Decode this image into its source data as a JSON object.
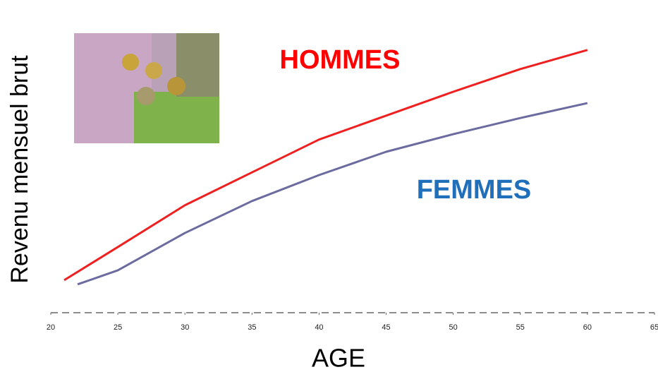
{
  "chart_data": {
    "type": "line",
    "x_label": "AGE",
    "y_label": "Revenu mensuel brut",
    "xlim": [
      20,
      65
    ],
    "xticks": [
      20,
      25,
      30,
      35,
      40,
      45,
      50,
      55,
      60,
      65
    ],
    "ylim": [
      0,
      100
    ],
    "series": [
      {
        "name": "HOMMES",
        "color": "#ee2020",
        "x": [
          21,
          25,
          30,
          35,
          40,
          45,
          50,
          55,
          60
        ],
        "values": [
          10.9,
          22,
          36,
          47,
          58,
          66,
          74,
          81.6,
          88
        ]
      },
      {
        "name": "FEMMES",
        "color": "#6b6ba0",
        "x": [
          22,
          25,
          30,
          35,
          40,
          45,
          50,
          55,
          60
        ],
        "values": [
          9.5,
          14.2,
          26.7,
          37.4,
          46.1,
          53.9,
          59.8,
          65.2,
          70.2
        ]
      }
    ]
  }
}
